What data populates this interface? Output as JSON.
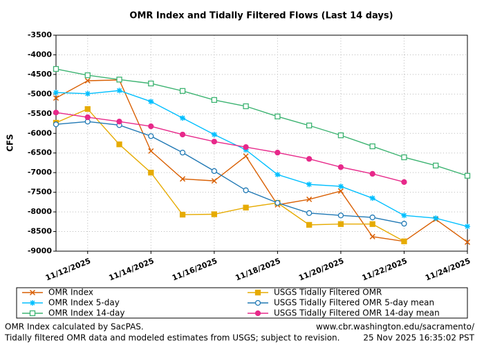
{
  "chart_data": {
    "type": "line",
    "title": "OMR Index and Tidally Filtered Flows (Last 14 days)",
    "y_label": "CFS",
    "x": [
      "11/11/2025",
      "11/12/2025",
      "11/13/2025",
      "11/14/2025",
      "11/15/2025",
      "11/16/2025",
      "11/17/2025",
      "11/18/2025",
      "11/19/2025",
      "11/20/2025",
      "11/21/2025",
      "11/22/2025",
      "11/23/2025",
      "11/24/2025"
    ],
    "xlim": [
      "11/11/2025",
      "11/24/2025"
    ],
    "xticks": [
      "11/12/2025",
      "11/14/2025",
      "11/16/2025",
      "11/18/2025",
      "11/20/2025",
      "11/22/2025",
      "11/24/2025"
    ],
    "ylim": [
      -9000,
      -3500
    ],
    "yticks": [
      -3500,
      -4000,
      -4500,
      -5000,
      -5500,
      -6000,
      -6500,
      -7000,
      -7500,
      -8000,
      -8500,
      -9000
    ],
    "grid": true,
    "legend_position": "bottom",
    "series": [
      {
        "name": "OMR Index",
        "color": "#d95f02",
        "marker": "x",
        "values": [
          -5100,
          -4660,
          -4640,
          -6450,
          -7160,
          -7210,
          -6580,
          -7820,
          -7680,
          -7470,
          -8630,
          -8750,
          -8190,
          -8770
        ]
      },
      {
        "name": "OMR Index 5-day",
        "color": "#00bfff",
        "marker": "star",
        "values": [
          -4960,
          -4990,
          -4910,
          -5190,
          -5610,
          -6030,
          -6420,
          -7050,
          -7300,
          -7350,
          -7650,
          -8090,
          -8160,
          -8370
        ]
      },
      {
        "name": "OMR Index 14-day",
        "color": "#3cb371",
        "marker": "open-square",
        "values": [
          -4360,
          -4520,
          -4630,
          -4730,
          -4920,
          -5150,
          -5310,
          -5570,
          -5800,
          -6050,
          -6330,
          -6610,
          -6820,
          -7080
        ]
      },
      {
        "name": "USGS Tidally Filtered OMR",
        "color": "#e6ab02",
        "marker": "square",
        "values": [
          -5730,
          -5380,
          -6280,
          -7000,
          -8070,
          -8060,
          -7890,
          -7770,
          -8330,
          -8310,
          -8310,
          -8750,
          null,
          null
        ]
      },
      {
        "name": "USGS Tidally Filtered OMR 5-day mean",
        "color": "#1f78b4",
        "marker": "open-circle",
        "values": [
          -5770,
          -5700,
          -5790,
          -6070,
          -6490,
          -6960,
          -7450,
          -7770,
          -8030,
          -8090,
          -8140,
          -8300,
          null,
          null
        ]
      },
      {
        "name": "USGS Tidally Filtered OMR 14-day mean",
        "color": "#e7298a",
        "marker": "circle",
        "values": [
          -5470,
          -5590,
          -5700,
          -5820,
          -6030,
          -6210,
          -6350,
          -6490,
          -6650,
          -6860,
          -7030,
          -7240,
          null,
          null
        ]
      }
    ]
  },
  "footer": {
    "left": [
      "OMR Index calculated by SacPAS.",
      "Tidally filtered OMR data and modeled estimates from USGS; subject to revision."
    ],
    "right": [
      "www.cbr.washington.edu/sacramento/",
      "25 Nov 2025 16:35:02 PST"
    ]
  }
}
